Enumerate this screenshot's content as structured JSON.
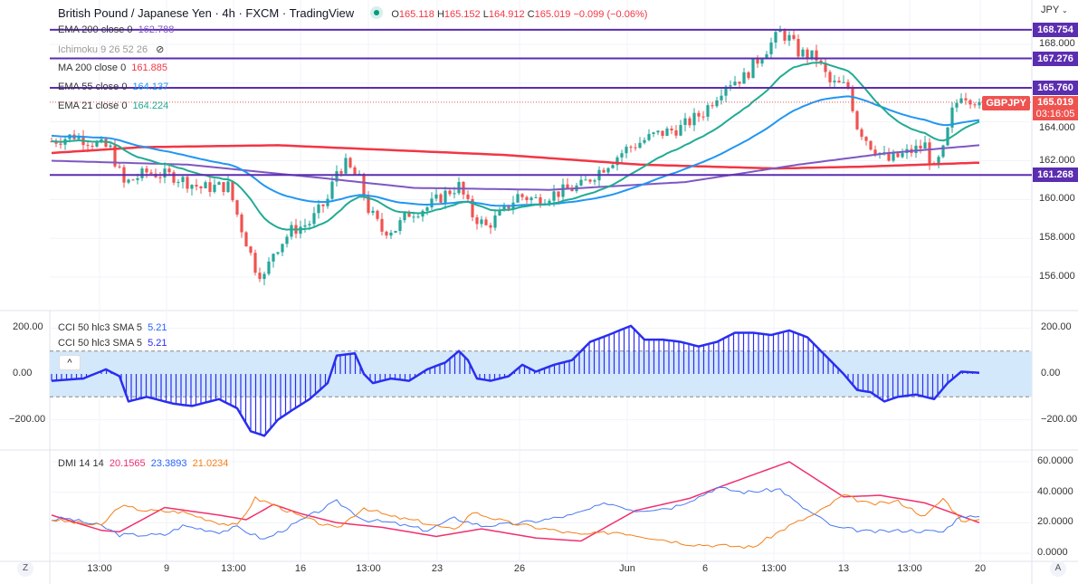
{
  "header": {
    "title": "British Pound / Japanese Yen · 4h · FXCM · TradingView",
    "o_label": "O",
    "o": "165.118",
    "h_label": "H",
    "h": "165.152",
    "l_label": "L",
    "l": "164.912",
    "c_label": "C",
    "c": "165.019",
    "change": "−0.099 (−0.06%)"
  },
  "legend": [
    {
      "label": "EMA 200 close 0",
      "value": "162.788",
      "color": "#7e57c2"
    },
    {
      "label": "Ichimoku 9 26 52 26",
      "value": "",
      "color": "#999"
    },
    {
      "label": "MA 200 close 0",
      "value": "161.885",
      "color": "#f23645"
    },
    {
      "label": "EMA 55 close 0",
      "value": "164.137",
      "color": "#2196f3"
    },
    {
      "label": "EMA 21 close 0",
      "value": "164.224",
      "color": "#22ab94"
    }
  ],
  "currency": "JPY",
  "price_axis": [
    "168.000",
    "164.000",
    "162.000",
    "160.000",
    "158.000",
    "156.000"
  ],
  "price_ticks": [
    168,
    164,
    162,
    160,
    158,
    156
  ],
  "hlines": [
    {
      "value": 168.754,
      "label": "168.754"
    },
    {
      "value": 167.276,
      "label": "167.276"
    },
    {
      "value": 165.76,
      "label": "165.760"
    },
    {
      "value": 161.268,
      "label": "161.268"
    }
  ],
  "symbol_tag": "GBPJPY",
  "last_price": "165.019",
  "last_price_value": 165.019,
  "countdown": "03:16:05",
  "colors": {
    "up": "#26a69a",
    "down": "#ef5350",
    "hline": "#5b2db0",
    "ema21": "#22ab94",
    "ema55": "#2196f3",
    "ma200": "#f23645",
    "ema200": "#7e57c2",
    "cci": "#2a2ef0",
    "cci_band": "#d4e8fb",
    "adx": "#f0306e",
    "pdi": "#4a78f0",
    "mdi": "#f57f17"
  },
  "price_keypoints": [
    [
      0,
      163.0
    ],
    [
      5,
      163.3
    ],
    [
      13,
      162.6
    ],
    [
      16,
      160.8
    ],
    [
      21,
      161.4
    ],
    [
      27,
      161.2
    ],
    [
      33,
      160.6
    ],
    [
      39,
      160.7
    ],
    [
      42,
      158.5
    ],
    [
      45,
      156.5
    ],
    [
      47,
      156.0
    ],
    [
      49,
      157.3
    ],
    [
      53,
      158.4
    ],
    [
      57,
      158.8
    ],
    [
      61,
      160.0
    ],
    [
      63,
      161.5
    ],
    [
      65,
      161.8
    ],
    [
      68,
      161.0
    ],
    [
      70,
      159.5
    ],
    [
      73,
      158.4
    ],
    [
      76,
      158.5
    ],
    [
      79,
      159.3
    ],
    [
      83,
      159.6
    ],
    [
      87,
      160.3
    ],
    [
      90,
      160.7
    ],
    [
      93,
      159.2
    ],
    [
      96,
      158.6
    ],
    [
      99,
      159.2
    ],
    [
      103,
      160.2
    ],
    [
      107,
      160.0
    ],
    [
      111,
      160.3
    ],
    [
      117,
      160.7
    ],
    [
      121,
      161.5
    ],
    [
      127,
      162.6
    ],
    [
      133,
      163.3
    ],
    [
      139,
      163.7
    ],
    [
      144,
      164.5
    ],
    [
      149,
      166.0
    ],
    [
      153,
      166.3
    ],
    [
      157,
      167.5
    ],
    [
      161,
      168.6
    ],
    [
      163,
      168.3
    ],
    [
      165,
      167.6
    ],
    [
      169,
      167.3
    ],
    [
      172,
      166.0
    ],
    [
      176,
      165.8
    ],
    [
      178,
      163.8
    ],
    [
      181,
      162.8
    ],
    [
      185,
      162.0
    ],
    [
      189,
      162.4
    ],
    [
      193,
      162.8
    ],
    [
      195,
      161.5
    ],
    [
      197,
      162.5
    ],
    [
      199,
      164.5
    ],
    [
      201,
      165.5
    ],
    [
      205,
      165.0
    ]
  ],
  "ma200_keypoints": [
    [
      0,
      162.4
    ],
    [
      20,
      162.7
    ],
    [
      50,
      162.8
    ],
    [
      100,
      162.3
    ],
    [
      130,
      161.8
    ],
    [
      160,
      161.6
    ],
    [
      180,
      161.7
    ],
    [
      205,
      161.9
    ]
  ],
  "ema200_keypoints": [
    [
      0,
      162.0
    ],
    [
      30,
      161.8
    ],
    [
      60,
      161.1
    ],
    [
      80,
      160.6
    ],
    [
      110,
      160.5
    ],
    [
      140,
      160.9
    ],
    [
      165,
      161.8
    ],
    [
      185,
      162.4
    ],
    [
      205,
      162.8
    ]
  ],
  "cci": {
    "legend1": "CCI 50 hlc3 SMA 5",
    "value1": "5.21",
    "legend2": "CCI 50 hlc3 SMA 5",
    "value2": "5.21",
    "collapse": "^",
    "axis": [
      "200.00",
      "0.00",
      "−200.00"
    ],
    "ticks": [
      200,
      0,
      -200
    ],
    "band": [
      -100,
      100
    ],
    "keypoints": [
      [
        0,
        -30
      ],
      [
        7,
        -20
      ],
      [
        12,
        20
      ],
      [
        15,
        -10
      ],
      [
        17,
        -120
      ],
      [
        21,
        -100
      ],
      [
        27,
        -130
      ],
      [
        31,
        -140
      ],
      [
        37,
        -110
      ],
      [
        41,
        -150
      ],
      [
        44,
        -250
      ],
      [
        47,
        -270
      ],
      [
        50,
        -200
      ],
      [
        53,
        -160
      ],
      [
        57,
        -110
      ],
      [
        61,
        -40
      ],
      [
        63,
        80
      ],
      [
        67,
        90
      ],
      [
        69,
        0
      ],
      [
        71,
        -40
      ],
      [
        75,
        -20
      ],
      [
        79,
        -30
      ],
      [
        83,
        20
      ],
      [
        87,
        50
      ],
      [
        90,
        100
      ],
      [
        92,
        60
      ],
      [
        94,
        -20
      ],
      [
        97,
        -30
      ],
      [
        101,
        -10
      ],
      [
        104,
        40
      ],
      [
        107,
        10
      ],
      [
        111,
        40
      ],
      [
        115,
        60
      ],
      [
        119,
        140
      ],
      [
        123,
        170
      ],
      [
        128,
        210
      ],
      [
        131,
        150
      ],
      [
        135,
        150
      ],
      [
        139,
        140
      ],
      [
        143,
        120
      ],
      [
        147,
        140
      ],
      [
        151,
        180
      ],
      [
        155,
        180
      ],
      [
        159,
        170
      ],
      [
        163,
        190
      ],
      [
        167,
        160
      ],
      [
        171,
        80
      ],
      [
        175,
        0
      ],
      [
        178,
        -70
      ],
      [
        181,
        -80
      ],
      [
        184,
        -120
      ],
      [
        187,
        -100
      ],
      [
        191,
        -90
      ],
      [
        195,
        -110
      ],
      [
        198,
        -40
      ],
      [
        201,
        10
      ],
      [
        205,
        5
      ]
    ]
  },
  "dmi": {
    "legend": "DMI 14 14",
    "adx": "20.1565",
    "pdi": "23.3893",
    "mdi": "21.0234",
    "axis": [
      "60.0000",
      "40.0000",
      "20.0000",
      "0.0000"
    ],
    "ticks": [
      60,
      40,
      20,
      0
    ],
    "adx_kp": [
      [
        0,
        25
      ],
      [
        11,
        15
      ],
      [
        15,
        14
      ],
      [
        25,
        30
      ],
      [
        37,
        25
      ],
      [
        43,
        22
      ],
      [
        49,
        32
      ],
      [
        55,
        26
      ],
      [
        63,
        20
      ],
      [
        73,
        17
      ],
      [
        85,
        11
      ],
      [
        95,
        16
      ],
      [
        107,
        10
      ],
      [
        117,
        8
      ],
      [
        129,
        28
      ],
      [
        141,
        36
      ],
      [
        149,
        45
      ],
      [
        163,
        60
      ],
      [
        175,
        37
      ],
      [
        183,
        38
      ],
      [
        193,
        33
      ],
      [
        205,
        20
      ]
    ],
    "pdi_kp": [
      [
        0,
        22
      ],
      [
        3,
        23
      ],
      [
        11,
        18
      ],
      [
        15,
        12
      ],
      [
        25,
        12
      ],
      [
        29,
        18
      ],
      [
        37,
        14
      ],
      [
        41,
        17
      ],
      [
        47,
        9
      ],
      [
        53,
        18
      ],
      [
        63,
        34
      ],
      [
        69,
        22
      ],
      [
        75,
        20
      ],
      [
        83,
        15
      ],
      [
        89,
        23
      ],
      [
        95,
        18
      ],
      [
        101,
        19
      ],
      [
        107,
        21
      ],
      [
        115,
        25
      ],
      [
        123,
        33
      ],
      [
        129,
        28
      ],
      [
        137,
        30
      ],
      [
        143,
        37
      ],
      [
        147,
        43
      ],
      [
        153,
        40
      ],
      [
        161,
        42
      ],
      [
        165,
        32
      ],
      [
        173,
        17
      ],
      [
        181,
        14
      ],
      [
        189,
        15
      ],
      [
        197,
        14
      ],
      [
        201,
        25
      ],
      [
        205,
        23
      ]
    ],
    "mdi_kp": [
      [
        0,
        22
      ],
      [
        11,
        18
      ],
      [
        15,
        31
      ],
      [
        21,
        28
      ],
      [
        29,
        27
      ],
      [
        37,
        20
      ],
      [
        41,
        18
      ],
      [
        45,
        36
      ],
      [
        49,
        32
      ],
      [
        55,
        24
      ],
      [
        63,
        16
      ],
      [
        69,
        30
      ],
      [
        75,
        24
      ],
      [
        81,
        21
      ],
      [
        89,
        15
      ],
      [
        93,
        27
      ],
      [
        101,
        20
      ],
      [
        109,
        16
      ],
      [
        117,
        12
      ],
      [
        125,
        14
      ],
      [
        133,
        10
      ],
      [
        141,
        6
      ],
      [
        155,
        4
      ],
      [
        163,
        18
      ],
      [
        169,
        26
      ],
      [
        175,
        38
      ],
      [
        181,
        32
      ],
      [
        187,
        34
      ],
      [
        193,
        24
      ],
      [
        197,
        36
      ],
      [
        201,
        22
      ],
      [
        205,
        21
      ]
    ]
  },
  "time_axis": [
    {
      "label": "13:00",
      "bar": 10.6
    },
    {
      "label": "9",
      "bar": 25.4
    },
    {
      "label": "13:00",
      "bar": 40.2
    },
    {
      "label": "16",
      "bar": 55
    },
    {
      "label": "13:00",
      "bar": 70
    },
    {
      "label": "23",
      "bar": 85.2
    },
    {
      "label": "26",
      "bar": 103.4
    },
    {
      "label": "Jun",
      "bar": 127.2
    },
    {
      "label": "6",
      "bar": 144.4
    },
    {
      "label": "13:00",
      "bar": 159.6
    },
    {
      "label": "13",
      "bar": 175
    },
    {
      "label": "13:00",
      "bar": 189.6
    },
    {
      "label": "20",
      "bar": 205.2
    }
  ],
  "corner_left": "Z",
  "corner_right": "A"
}
